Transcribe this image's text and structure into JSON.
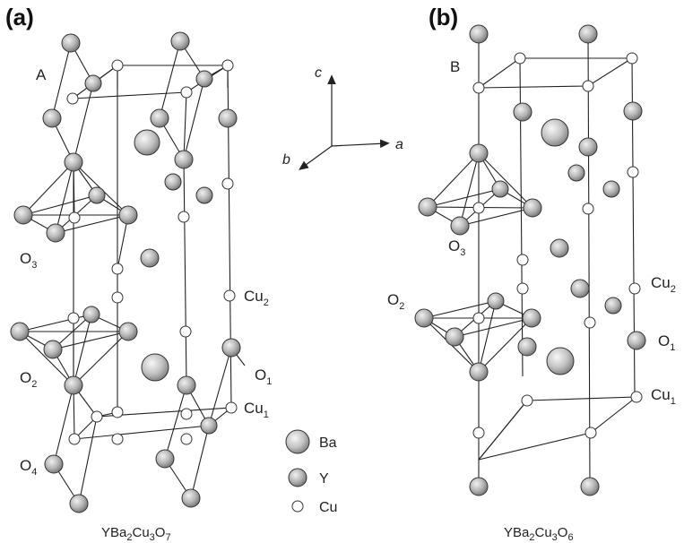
{
  "panel_a": {
    "label": "(a)",
    "structure_label": "A",
    "site_labels": {
      "O3": {
        "main": "O",
        "sub": "3"
      },
      "O2": {
        "main": "O",
        "sub": "2"
      },
      "O4": {
        "main": "O",
        "sub": "4"
      },
      "O1": {
        "main": "O",
        "sub": "1"
      },
      "Cu2": {
        "main": "Cu",
        "sub": "2"
      },
      "Cu1": {
        "main": "Cu",
        "sub": "1"
      }
    },
    "formula": {
      "p1": "YBa",
      "s1": "2",
      "p2": "Cu",
      "s2": "3",
      "p3": "O",
      "s3": "7"
    }
  },
  "panel_b": {
    "label": "(b)",
    "structure_label": "B",
    "site_labels": {
      "O3": {
        "main": "O",
        "sub": "3"
      },
      "O2": {
        "main": "O",
        "sub": "2"
      },
      "O1": {
        "main": "O",
        "sub": "1"
      },
      "Cu2": {
        "main": "Cu",
        "sub": "2"
      },
      "Cu1": {
        "main": "Cu",
        "sub": "1"
      }
    },
    "formula": {
      "p1": "YBa",
      "s1": "2",
      "p2": "Cu",
      "s2": "3",
      "p3": "O",
      "s3": "6"
    }
  },
  "axes": {
    "a": "a",
    "b": "b",
    "c": "c"
  },
  "legend": {
    "ba": "Ba",
    "y": "Y",
    "cu": "Cu"
  },
  "colors": {
    "atom_fill_light": "#f2f2f2",
    "atom_fill_dark": "#8c8c8c",
    "bond": "#222222",
    "cu_fill": "#ffffff"
  }
}
